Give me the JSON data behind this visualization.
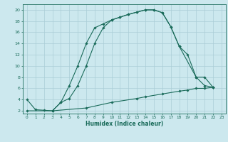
{
  "xlabel": "Humidex (Indice chaleur)",
  "background_color": "#cce8ee",
  "grid_color": "#aacdd6",
  "line_color": "#1a6b5a",
  "xlim": [
    -0.5,
    23.5
  ],
  "ylim": [
    1.5,
    21
  ],
  "xticks": [
    0,
    1,
    2,
    3,
    4,
    5,
    6,
    7,
    8,
    9,
    10,
    11,
    12,
    13,
    14,
    15,
    16,
    17,
    18,
    19,
    20,
    21,
    22,
    23
  ],
  "yticks": [
    2,
    4,
    6,
    8,
    10,
    12,
    14,
    16,
    18,
    20
  ],
  "curve1_x": [
    0,
    1,
    2,
    3,
    4,
    5,
    6,
    7,
    8,
    9,
    10,
    11,
    12,
    13,
    14,
    15,
    16,
    17,
    18,
    20,
    21,
    22
  ],
  "curve1_y": [
    4,
    2.2,
    2.1,
    2,
    3.5,
    6.5,
    10,
    14,
    16.8,
    17.5,
    18.2,
    18.7,
    19.2,
    19.6,
    20,
    20,
    19.5,
    17,
    13.5,
    8,
    6.5,
    6.2
  ],
  "curve2_x": [
    3,
    4,
    5,
    6,
    7,
    8,
    9,
    10,
    11,
    12,
    13,
    14,
    15,
    16,
    17,
    18,
    19,
    20,
    21,
    22
  ],
  "curve2_y": [
    2,
    3.5,
    4.2,
    6.5,
    10,
    14,
    16.8,
    18.2,
    18.7,
    19.2,
    19.6,
    20,
    20,
    19.5,
    17,
    13.5,
    12,
    8,
    8,
    6.2
  ],
  "curve3_x": [
    0,
    3,
    7,
    10,
    13,
    14,
    16,
    18,
    19,
    20,
    21,
    22
  ],
  "curve3_y": [
    2,
    2,
    2.5,
    3.5,
    4.2,
    4.5,
    5.0,
    5.5,
    5.7,
    6.0,
    6.0,
    6.2
  ],
  "figsize": [
    3.2,
    2.0
  ],
  "dpi": 100
}
